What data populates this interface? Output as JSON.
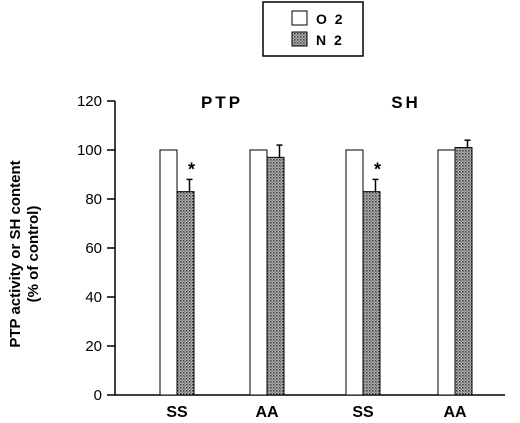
{
  "chart_data": {
    "type": "bar",
    "categories": [
      "SS",
      "AA",
      "SS",
      "AA"
    ],
    "groups": [
      "PTP",
      "SH"
    ],
    "series": [
      {
        "name": "O 2",
        "values": [
          100,
          100,
          100,
          100
        ],
        "errors": [
          0,
          0,
          0,
          0
        ],
        "color": "#ffffff"
      },
      {
        "name": "N 2",
        "values": [
          83,
          97,
          83,
          101
        ],
        "errors": [
          5,
          5,
          5,
          3
        ],
        "color": "#8a8a8a"
      }
    ],
    "annotations": [
      "*",
      "",
      "*",
      ""
    ],
    "ylabel_line1": "PTP activity or SH content",
    "ylabel_line2": "(% of control)",
    "ylim": [
      0,
      120
    ],
    "yticks": [
      0,
      20,
      40,
      60,
      80,
      100,
      120
    ],
    "legend_position": "top-center",
    "grid": false
  }
}
